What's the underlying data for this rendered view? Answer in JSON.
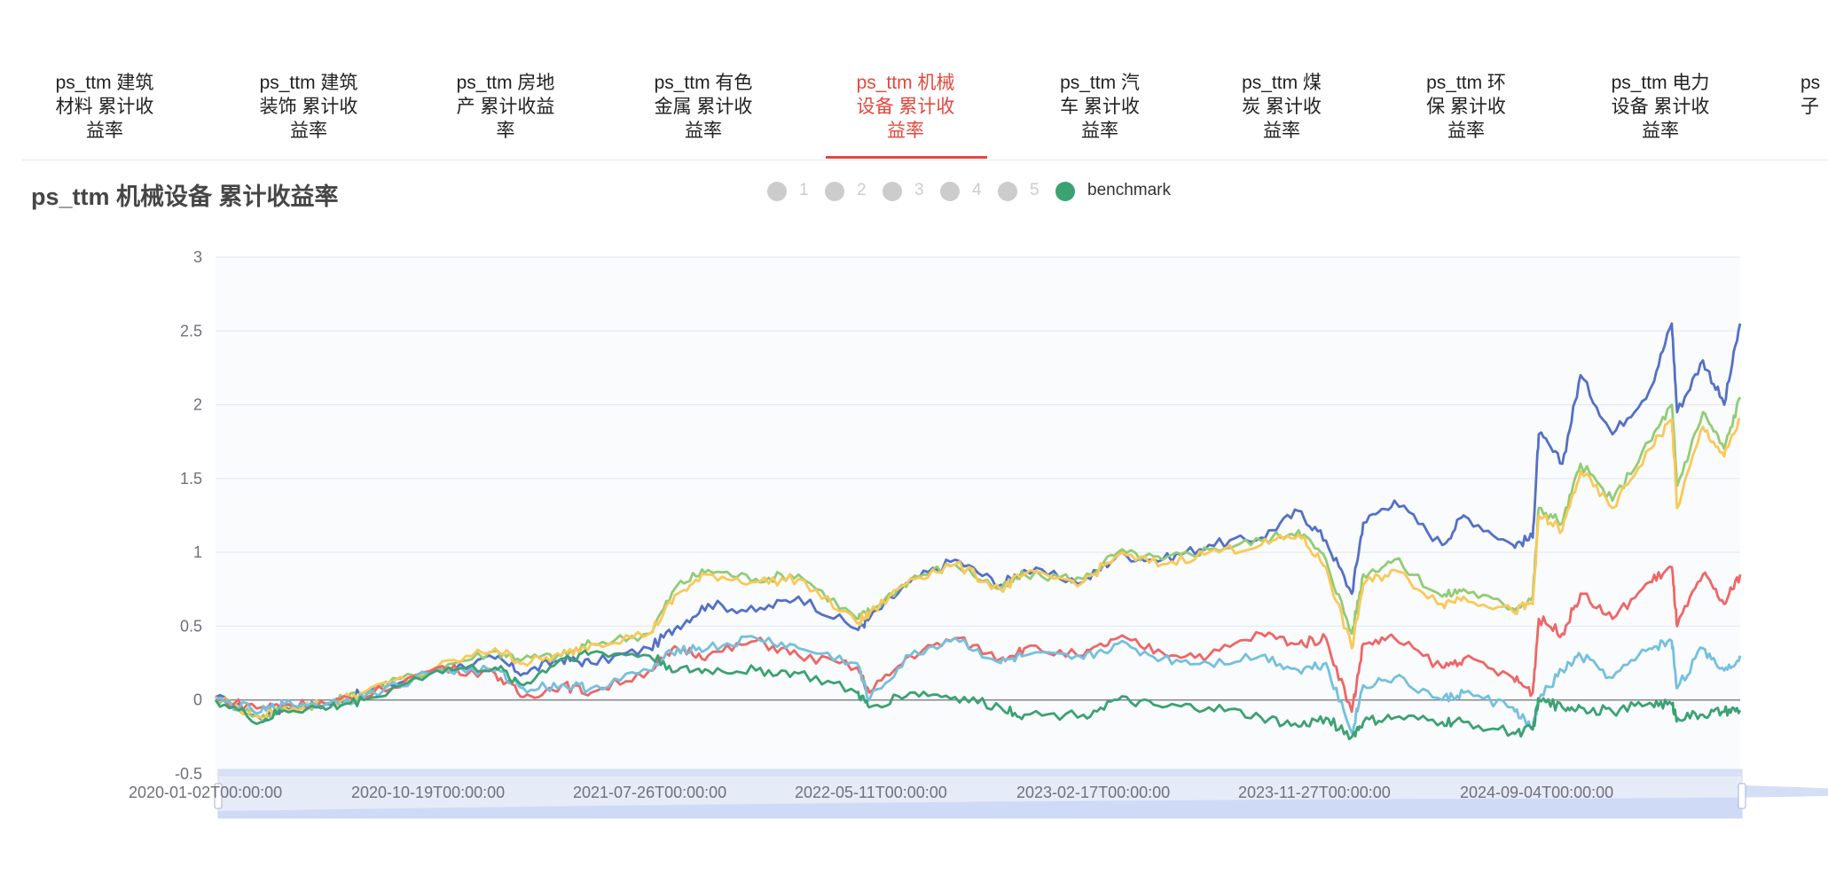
{
  "tabs": [
    {
      "label": "ps_ttm 建筑材料 累计收益率",
      "lines": [
        "ps_ttm 建筑",
        "材料 累计收",
        "益率"
      ],
      "active": false
    },
    {
      "label": "ps_ttm 建筑装饰 累计收益率",
      "lines": [
        "ps_ttm 建筑",
        "装饰 累计收",
        "益率"
      ],
      "active": false
    },
    {
      "label": "ps_ttm 房地产 累计收益率",
      "lines": [
        "ps_ttm 房地",
        "产 累计收益",
        "率"
      ],
      "active": false
    },
    {
      "label": "ps_ttm 有色金属 累计收益率",
      "lines": [
        "ps_ttm 有色",
        "金属 累计收",
        "益率"
      ],
      "active": false
    },
    {
      "label": "ps_ttm 机械设备 累计收益率",
      "lines": [
        "ps_ttm 机械",
        "设备 累计收",
        "益率"
      ],
      "active": true
    },
    {
      "label": "ps_ttm 汽车 累计收益率",
      "lines": [
        "ps_ttm 汽",
        "车 累计收",
        "益率"
      ],
      "active": false
    },
    {
      "label": "ps_ttm 煤炭 累计收益率",
      "lines": [
        "ps_ttm 煤",
        "炭 累计收",
        "益率"
      ],
      "active": false
    },
    {
      "label": "ps_ttm 环保 累计收益率",
      "lines": [
        "ps_ttm 环",
        "保 累计收",
        "益率"
      ],
      "active": false
    },
    {
      "label": "ps_ttm 电力设备 累计收益率",
      "lines": [
        "ps_ttm 电力",
        "设备 累计收",
        "益率"
      ],
      "active": false
    },
    {
      "label": "ps_ttm 电子",
      "lines": [
        "ps",
        "子"
      ],
      "active": false
    }
  ],
  "colors": {
    "accent": "#e2483d",
    "legend_inactive": "#cccccc",
    "benchmark": "#3ba272"
  },
  "chart_data": {
    "type": "line",
    "title": "ps_ttm 机械设备 累计收益率",
    "legend": [
      {
        "name": "1",
        "active": false
      },
      {
        "name": "2",
        "active": false
      },
      {
        "name": "3",
        "active": false
      },
      {
        "name": "4",
        "active": false
      },
      {
        "name": "5",
        "active": false
      },
      {
        "name": "benchmark",
        "active": true
      }
    ],
    "ylim": [
      -0.5,
      3
    ],
    "yticks": [
      "3",
      "2.5",
      "2",
      "1.5",
      "1",
      "0.5",
      "0",
      "-0.5"
    ],
    "xticks": [
      "2020-01-02T00:00:00",
      "2020-10-19T00:00:00",
      "2021-07-26T00:00:00",
      "2022-05-11T00:00:00",
      "2023-02-17T00:00:00",
      "2023-11-27T00:00:00",
      "2024-09-04T00:00:00"
    ],
    "x_dates": [
      "2020-01-02",
      "2020-03-02",
      "2020-04-01",
      "2020-06-01",
      "2020-07-15",
      "2020-10-19",
      "2021-01-04",
      "2021-02-10",
      "2021-04-01",
      "2021-05-10",
      "2021-07-26",
      "2021-09-01",
      "2021-10-11",
      "2021-12-13",
      "2022-02-07",
      "2022-04-25",
      "2022-05-11",
      "2022-07-04",
      "2022-09-01",
      "2022-10-31",
      "2022-12-01",
      "2023-02-17",
      "2023-04-03",
      "2023-06-01",
      "2023-08-01",
      "2023-10-09",
      "2023-11-27",
      "2024-01-02",
      "2024-02-05",
      "2024-02-20",
      "2024-04-01",
      "2024-06-03",
      "2024-07-01",
      "2024-09-04",
      "2024-09-30",
      "2024-10-08",
      "2024-11-08",
      "2024-12-02",
      "2025-01-13",
      "2025-03-03",
      "2025-04-01",
      "2025-04-08",
      "2025-05-12",
      "2025-06-09",
      "2025-06-30"
    ],
    "series": [
      {
        "color": "#5470c6",
        "values": [
          0.02,
          -0.13,
          -0.05,
          -0.03,
          0.05,
          0.2,
          0.28,
          0.18,
          0.28,
          0.25,
          0.35,
          0.5,
          0.65,
          0.6,
          0.7,
          0.48,
          0.55,
          0.8,
          0.95,
          0.78,
          0.88,
          0.8,
          0.98,
          0.95,
          1.05,
          1.1,
          1.28,
          1.08,
          0.72,
          1.2,
          1.35,
          1.05,
          1.25,
          1.05,
          1.1,
          1.8,
          1.6,
          2.2,
          1.8,
          2.1,
          2.55,
          1.95,
          2.3,
          2.0,
          2.55
        ]
      },
      {
        "color": "#91cc75",
        "values": [
          0.02,
          -0.12,
          -0.05,
          -0.02,
          0.05,
          0.22,
          0.33,
          0.28,
          0.3,
          0.38,
          0.45,
          0.78,
          0.88,
          0.82,
          0.85,
          0.55,
          0.6,
          0.82,
          0.92,
          0.75,
          0.85,
          0.82,
          1.0,
          0.95,
          1.02,
          1.08,
          1.15,
          0.95,
          0.45,
          0.85,
          0.95,
          0.7,
          0.75,
          0.62,
          0.7,
          1.3,
          1.2,
          1.6,
          1.35,
          1.75,
          2.0,
          1.45,
          1.95,
          1.7,
          2.05
        ]
      },
      {
        "color": "#fac858",
        "values": [
          0.02,
          -0.12,
          -0.05,
          -0.02,
          0.05,
          0.22,
          0.35,
          0.25,
          0.3,
          0.38,
          0.45,
          0.72,
          0.85,
          0.8,
          0.82,
          0.52,
          0.58,
          0.82,
          0.92,
          0.75,
          0.85,
          0.8,
          0.98,
          0.92,
          1.0,
          1.05,
          1.12,
          0.9,
          0.35,
          0.78,
          0.88,
          0.65,
          0.7,
          0.6,
          0.65,
          1.25,
          1.15,
          1.55,
          1.3,
          1.7,
          1.9,
          1.3,
          1.85,
          1.65,
          1.9
        ]
      },
      {
        "color": "#ee6666",
        "values": [
          0.0,
          -0.05,
          -0.03,
          -0.02,
          0.02,
          0.22,
          0.18,
          0.02,
          0.1,
          0.05,
          0.2,
          0.35,
          0.3,
          0.4,
          0.3,
          0.22,
          0.05,
          0.3,
          0.42,
          0.28,
          0.35,
          0.3,
          0.42,
          0.32,
          0.3,
          0.45,
          0.38,
          0.42,
          -0.08,
          0.38,
          0.42,
          0.22,
          0.28,
          0.15,
          0.05,
          0.55,
          0.45,
          0.72,
          0.55,
          0.8,
          0.9,
          0.5,
          0.85,
          0.65,
          0.85
        ]
      },
      {
        "color": "#73c0de",
        "values": [
          0.0,
          -0.08,
          -0.03,
          -0.02,
          0.02,
          0.2,
          0.2,
          0.08,
          0.1,
          0.08,
          0.2,
          0.35,
          0.35,
          0.42,
          0.35,
          0.25,
          0.0,
          0.3,
          0.42,
          0.25,
          0.3,
          0.28,
          0.38,
          0.28,
          0.25,
          0.3,
          0.2,
          0.25,
          -0.22,
          0.1,
          0.15,
          0.0,
          0.05,
          -0.05,
          -0.2,
          0.0,
          0.2,
          0.3,
          0.15,
          0.35,
          0.4,
          0.08,
          0.35,
          0.2,
          0.3
        ]
      },
      {
        "color": "#3ba272",
        "values": [
          0.0,
          -0.15,
          -0.07,
          -0.05,
          0.0,
          0.2,
          0.22,
          0.1,
          0.28,
          0.32,
          0.3,
          0.2,
          0.2,
          0.2,
          0.18,
          0.05,
          -0.05,
          0.05,
          0.02,
          -0.05,
          -0.1,
          -0.1,
          0.0,
          -0.05,
          -0.05,
          -0.12,
          -0.18,
          -0.12,
          -0.25,
          -0.15,
          -0.12,
          -0.15,
          -0.15,
          -0.22,
          -0.2,
          0.0,
          -0.05,
          -0.05,
          -0.08,
          -0.02,
          -0.03,
          -0.12,
          -0.1,
          -0.08,
          -0.07
        ]
      }
    ]
  }
}
